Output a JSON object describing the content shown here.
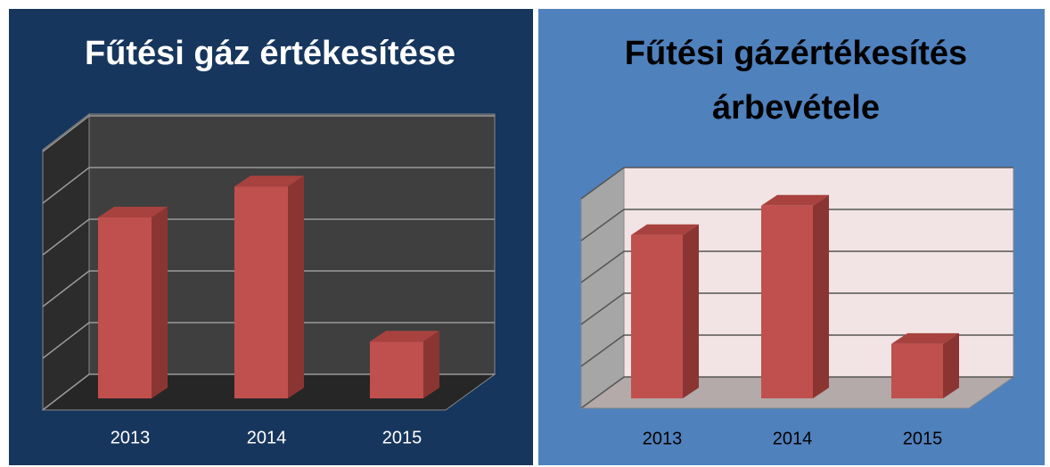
{
  "chart_data": [
    {
      "type": "bar3d",
      "title": [
        "Fűtési gáz értékesítése"
      ],
      "categories": [
        "2013",
        "2014",
        "2015"
      ],
      "values": [
        3.5,
        4.1,
        1.1
      ],
      "color": "#c0504d",
      "ylim": [
        0,
        5
      ],
      "yticks": [
        0,
        1,
        2,
        3,
        4,
        5
      ],
      "grid": true
    },
    {
      "type": "bar3d",
      "title": [
        "Fűtési gázértékesítés",
        "árbevétele"
      ],
      "categories": [
        "2013",
        "2014",
        "2015"
      ],
      "values": [
        3.9,
        4.6,
        1.3
      ],
      "color": "#c0504d",
      "ylim": [
        0,
        5
      ],
      "yticks": [
        0,
        1,
        2,
        3,
        4,
        5
      ],
      "grid": true
    }
  ]
}
